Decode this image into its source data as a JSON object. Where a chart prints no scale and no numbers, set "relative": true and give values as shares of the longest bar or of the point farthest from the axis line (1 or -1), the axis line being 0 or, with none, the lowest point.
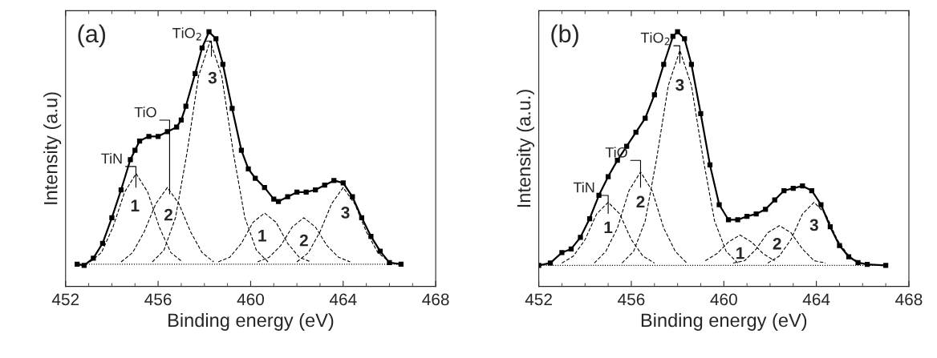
{
  "chart_data": [
    {
      "type": "line",
      "relative": true,
      "xlabel": "Binding energy (eV)",
      "ylabel": "Intensity (a.u)",
      "xlim": [
        452,
        468
      ],
      "xticks": [
        452,
        456,
        460,
        464,
        468
      ],
      "tick_labels": "x",
      "grid": false,
      "legend": false,
      "series": [
        {
          "color": "#000000",
          "marker": "square",
          "line_style": "solid",
          "x": [
            452.5,
            452.8,
            453.2,
            453.6,
            454.0,
            454.4,
            454.8,
            455.0,
            455.2,
            455.6,
            456.0,
            456.4,
            456.8,
            457.0,
            457.2,
            457.6,
            457.9,
            458.2,
            458.5,
            458.8,
            459.2,
            459.6,
            459.9,
            460.2,
            460.6,
            461.0,
            461.2,
            461.6,
            462.0,
            462.4,
            462.8,
            463.2,
            463.6,
            464.0,
            464.4,
            464.8,
            465.2,
            465.6,
            466.0,
            466.5
          ],
          "values": [
            0,
            -0.005,
            0.026,
            0.09,
            0.2,
            0.32,
            0.45,
            0.49,
            0.53,
            0.55,
            0.55,
            0.57,
            0.59,
            0.62,
            0.68,
            0.82,
            0.93,
            1.0,
            0.97,
            0.86,
            0.67,
            0.49,
            0.41,
            0.37,
            0.33,
            0.28,
            0.27,
            0.29,
            0.31,
            0.31,
            0.32,
            0.34,
            0.36,
            0.35,
            0.29,
            0.2,
            0.12,
            0.056,
            0.007,
            0
          ]
        },
        {
          "color": "#000000",
          "marker": "none",
          "line_style": "dashed",
          "x": [
            453.05,
            453.55,
            454.05,
            454.55,
            455.05,
            455.55,
            456.05,
            456.55,
            457.05
          ],
          "values": [
            0.01,
            0.05,
            0.16,
            0.31,
            0.39,
            0.31,
            0.16,
            0.05,
            0.01
          ]
        },
        {
          "color": "#000000",
          "marker": "none",
          "line_style": "dashed",
          "x": [
            454.4,
            454.9,
            455.4,
            455.9,
            456.4,
            456.9,
            457.4,
            457.9,
            458.4
          ],
          "values": [
            0.01,
            0.05,
            0.14,
            0.26,
            0.33,
            0.26,
            0.14,
            0.05,
            0.01
          ]
        },
        {
          "color": "#000000",
          "marker": "none",
          "line_style": "dashed",
          "x": [
            455.75,
            456.25,
            456.75,
            457.25,
            457.75,
            458.25,
            458.75,
            459.25,
            459.75,
            460.25,
            460.75
          ],
          "values": [
            0.01,
            0.06,
            0.2,
            0.48,
            0.81,
            0.96,
            0.81,
            0.48,
            0.2,
            0.06,
            0.01
          ]
        },
        {
          "color": "#000000",
          "marker": "none",
          "line_style": "dashed",
          "x": [
            458.6,
            459.1,
            459.6,
            460.1,
            460.6,
            461.1,
            461.6,
            462.1,
            462.6
          ],
          "values": [
            0.01,
            0.03,
            0.09,
            0.18,
            0.22,
            0.18,
            0.09,
            0.03,
            0.01
          ]
        },
        {
          "color": "#000000",
          "marker": "none",
          "line_style": "dashed",
          "x": [
            460.3,
            460.8,
            461.3,
            461.8,
            462.3,
            462.8,
            463.3,
            463.8,
            464.3
          ],
          "values": [
            0.01,
            0.03,
            0.08,
            0.16,
            0.2,
            0.16,
            0.08,
            0.03,
            0.01
          ]
        },
        {
          "color": "#000000",
          "marker": "none",
          "line_style": "dashed",
          "x": [
            462.0,
            462.5,
            463.0,
            463.5,
            464.0,
            464.5,
            465.0,
            465.5,
            466.0
          ],
          "values": [
            0.01,
            0.05,
            0.14,
            0.26,
            0.33,
            0.26,
            0.14,
            0.05,
            0.01
          ]
        },
        {
          "color": "#000000",
          "marker": "none",
          "line_style": "dotted",
          "x": [
            452.5,
            466.5
          ],
          "values": [
            0,
            0
          ]
        }
      ],
      "annotations": [
        "(a)",
        "TiN",
        "TiO",
        "TiO$_{2}$",
        "1",
        "2",
        "3",
        "1",
        "2",
        "3"
      ]
    },
    {
      "type": "line",
      "relative": true,
      "xlabel": "Binding energy (eV)",
      "ylabel": "Intensity (a.u.)",
      "xlim": [
        452,
        468
      ],
      "xticks": [
        452,
        456,
        460,
        464,
        468
      ],
      "tick_labels": "x",
      "grid": false,
      "legend": false,
      "series": [
        {
          "color": "#000000",
          "marker": "square",
          "line_style": "solid",
          "x": [
            452.0,
            452.5,
            453.0,
            453.4,
            453.8,
            454.2,
            454.6,
            455.0,
            455.4,
            455.8,
            456.2,
            456.6,
            457.0,
            457.4,
            457.8,
            458.0,
            458.3,
            458.6,
            459.0,
            459.4,
            459.8,
            460.2,
            460.6,
            461.0,
            461.4,
            461.8,
            462.2,
            462.6,
            463.0,
            463.4,
            463.8,
            464.2,
            464.6,
            465.0,
            465.4,
            465.8,
            466.2,
            467.0
          ],
          "values": [
            0,
            0.01,
            0.055,
            0.07,
            0.12,
            0.2,
            0.3,
            0.38,
            0.45,
            0.51,
            0.57,
            0.63,
            0.73,
            0.86,
            0.98,
            1.0,
            0.97,
            0.86,
            0.65,
            0.43,
            0.26,
            0.195,
            0.195,
            0.21,
            0.22,
            0.24,
            0.28,
            0.32,
            0.33,
            0.34,
            0.32,
            0.26,
            0.165,
            0.085,
            0.037,
            0.012,
            0.004,
            0
          ]
        },
        {
          "color": "#000000",
          "marker": "none",
          "line_style": "dashed",
          "x": [
            453.0,
            453.5,
            454.0,
            454.5,
            455.0,
            455.5,
            456.0,
            456.5,
            457.0
          ],
          "values": [
            0.01,
            0.04,
            0.11,
            0.22,
            0.27,
            0.22,
            0.11,
            0.04,
            0.01
          ]
        },
        {
          "color": "#000000",
          "marker": "none",
          "line_style": "dashed",
          "x": [
            454.4,
            454.9,
            455.4,
            455.9,
            456.4,
            456.9,
            457.4,
            457.9,
            458.4
          ],
          "values": [
            0.01,
            0.06,
            0.16,
            0.32,
            0.4,
            0.32,
            0.16,
            0.06,
            0.01
          ]
        },
        {
          "color": "#000000",
          "marker": "none",
          "line_style": "dashed",
          "x": [
            455.6,
            456.1,
            456.6,
            457.1,
            457.6,
            458.1,
            458.6,
            459.1,
            459.6,
            460.1,
            460.6
          ],
          "values": [
            0.01,
            0.06,
            0.19,
            0.46,
            0.77,
            0.92,
            0.77,
            0.46,
            0.19,
            0.06,
            0.01
          ]
        },
        {
          "color": "#000000",
          "marker": "none",
          "line_style": "dashed",
          "x": [
            459.2,
            459.7,
            460.2,
            460.7,
            461.2,
            461.7,
            462.2
          ],
          "values": [
            0.02,
            0.05,
            0.1,
            0.13,
            0.1,
            0.05,
            0.02
          ]
        },
        {
          "color": "#000000",
          "marker": "none",
          "line_style": "dashed",
          "x": [
            460.4,
            460.9,
            461.4,
            461.9,
            462.4,
            462.9,
            463.4,
            463.9,
            464.4
          ],
          "values": [
            0.01,
            0.02,
            0.07,
            0.14,
            0.17,
            0.14,
            0.07,
            0.02,
            0.01
          ]
        },
        {
          "color": "#000000",
          "marker": "none",
          "line_style": "dashed",
          "x": [
            461.9,
            462.4,
            462.9,
            463.4,
            463.9,
            464.4,
            464.9,
            465.4,
            465.9
          ],
          "values": [
            0.01,
            0.04,
            0.11,
            0.22,
            0.27,
            0.22,
            0.11,
            0.04,
            0.01
          ]
        },
        {
          "color": "#000000",
          "marker": "none",
          "line_style": "dotted",
          "x": [
            452.0,
            467.0
          ],
          "values": [
            0,
            0
          ]
        }
      ],
      "annotations": [
        "(b)",
        "TiN",
        "TiO",
        "TiO$_{2}$",
        "1",
        "2",
        "3",
        "1",
        "2",
        "3"
      ]
    }
  ]
}
